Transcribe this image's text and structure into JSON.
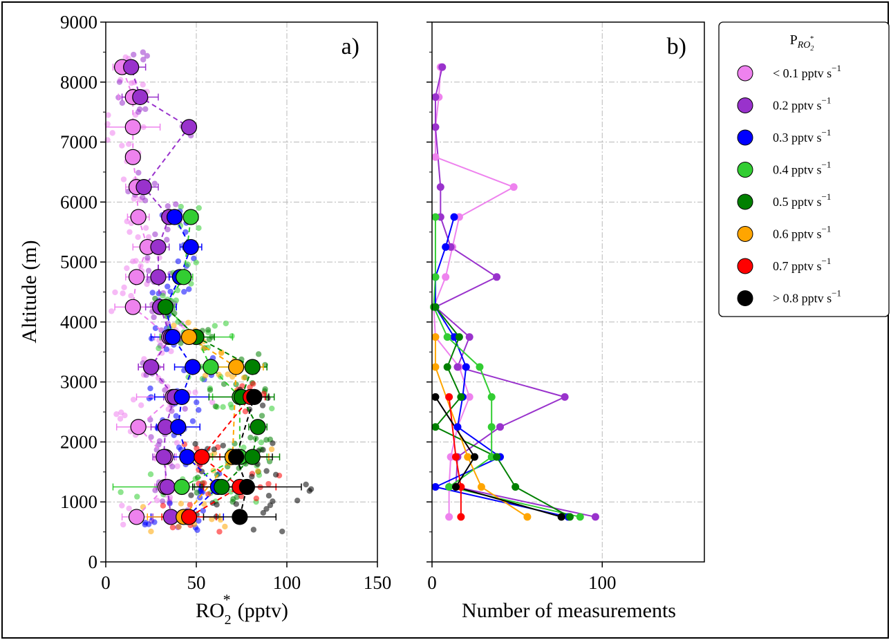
{
  "chart_data": [
    {
      "panel": "a)",
      "type": "scatter",
      "xlabel_main": "RO",
      "xlabel_sup": "*",
      "xlabel_sub": "2",
      "xlabel_unit": "(pptv)",
      "ylabel": "Altitude (m)",
      "xlim": [
        0,
        150
      ],
      "ylim": [
        0,
        9000
      ],
      "xticks": [
        "0",
        "50",
        "100",
        "150"
      ],
      "yticks": [
        "0",
        "1000",
        "2000",
        "3000",
        "4000",
        "5000",
        "6000",
        "7000",
        "8000",
        "9000"
      ],
      "grid": "dash-dot",
      "series": [
        {
          "name": "< 0.1 pptv s⁻¹",
          "color": "#ee82ee",
          "alt": [
            750,
            1250,
            1750,
            2250,
            2750,
            3250,
            3750,
            4250,
            4750,
            5250,
            5750,
            6250,
            6750,
            7250,
            7750,
            8250
          ],
          "x": [
            17,
            33,
            33,
            18,
            37,
            25,
            35,
            15,
            17,
            23,
            18,
            17,
            15,
            15,
            15,
            9
          ],
          "err": [
            8,
            6,
            6,
            12,
            20,
            7,
            8,
            10,
            6,
            8,
            6,
            6,
            4,
            15,
            8,
            5
          ]
        },
        {
          "name": "0.2 pptv s⁻¹",
          "color": "#9932cc",
          "alt": [
            750,
            1250,
            1750,
            2250,
            2750,
            3250,
            3750,
            4250,
            4750,
            5250,
            5750,
            6250,
            7250,
            7750,
            8250
          ],
          "x": [
            36,
            34,
            32,
            33,
            38,
            25,
            36,
            30,
            29,
            29,
            35,
            21,
            46,
            19,
            14
          ],
          "err": [
            10,
            6,
            6,
            8,
            6,
            7,
            6,
            8,
            6,
            6,
            4,
            8,
            0,
            10,
            8
          ]
        },
        {
          "name": "0.3 pptv s⁻¹",
          "color": "#0000ff",
          "alt": [
            750,
            1250,
            1750,
            2250,
            2750,
            3250,
            3750,
            4250,
            4750,
            5250,
            5750
          ],
          "x": [
            45,
            62,
            45,
            40,
            42,
            48,
            37,
            33,
            41,
            47,
            38
          ],
          "err": [
            20,
            10,
            10,
            12,
            15,
            10,
            12,
            6,
            6,
            6,
            4
          ]
        },
        {
          "name": "0.4 pptv s⁻¹",
          "color": "#32cd32",
          "alt": [
            1250,
            1750,
            2750,
            3250,
            3750,
            4250,
            4750,
            5750
          ],
          "x": [
            42,
            74,
            74,
            58,
            50,
            33,
            43,
            47
          ],
          "err": [
            38,
            15,
            15,
            12,
            20,
            5,
            5,
            4
          ]
        },
        {
          "name": "0.5 pptv s⁻¹",
          "color": "#008000",
          "alt": [
            1250,
            1750,
            2250,
            2750,
            3250,
            3750,
            4250
          ],
          "x": [
            64,
            81,
            84,
            75,
            81,
            50,
            33
          ],
          "err": [
            15,
            15,
            5,
            18,
            8,
            10,
            4
          ]
        },
        {
          "name": "0.6 pptv s⁻¹",
          "color": "#ffa500",
          "alt": [
            750,
            1750,
            3250,
            3750
          ],
          "x": [
            43,
            70,
            72,
            46
          ],
          "err": [
            20,
            20,
            15,
            8
          ]
        },
        {
          "name": "0.7 pptv s⁻¹",
          "color": "#ff0000",
          "alt": [
            750,
            1250,
            1750,
            2750
          ],
          "x": [
            46,
            74,
            53,
            80
          ],
          "err": [
            15,
            20,
            10,
            8
          ]
        },
        {
          "name": "> 0.8 pptv s⁻¹",
          "color": "#000000",
          "alt": [
            750,
            1250,
            1750,
            2750
          ],
          "x": [
            74,
            78,
            72,
            82
          ],
          "err": [
            20,
            30,
            20,
            8
          ]
        }
      ]
    },
    {
      "panel": "b)",
      "type": "line",
      "xlabel": "Number of measurements",
      "xlim": [
        0,
        160
      ],
      "ylim": [
        0,
        9000
      ],
      "xticks": [
        "0",
        "100"
      ],
      "grid": "dash-dot",
      "series": [
        {
          "name": "< 0.1 pptv s⁻¹",
          "color": "#ee82ee",
          "alt": [
            750,
            1250,
            1750,
            2250,
            2750,
            3250,
            3750,
            4250,
            4750,
            5250,
            5750,
            6250,
            6750,
            7250,
            7750,
            8250
          ],
          "n": [
            10,
            10,
            11,
            15,
            22,
            16,
            2,
            1,
            8,
            12,
            16,
            48,
            2,
            2,
            4,
            5
          ]
        },
        {
          "name": "0.2 pptv s⁻¹",
          "color": "#9932cc",
          "alt": [
            750,
            1250,
            1750,
            2250,
            2750,
            3250,
            3750,
            4250,
            4750,
            5250,
            5750,
            6250,
            7250,
            7750,
            8250
          ],
          "n": [
            96,
            14,
            15,
            40,
            78,
            15,
            22,
            2,
            38,
            11,
            5,
            5,
            2,
            2,
            6
          ]
        },
        {
          "name": "0.3 pptv s⁻¹",
          "color": "#0000ff",
          "alt": [
            750,
            1250,
            1750,
            2250,
            2750,
            3250,
            3750,
            4250,
            4750,
            5250,
            5750
          ],
          "n": [
            80,
            2,
            40,
            15,
            18,
            20,
            13,
            2,
            2,
            8,
            13
          ]
        },
        {
          "name": "0.4 pptv s⁻¹",
          "color": "#32cd32",
          "alt": [
            750,
            1250,
            1750,
            2250,
            2750,
            3250,
            3750,
            4250,
            4750,
            5750
          ],
          "n": [
            87,
            10,
            35,
            35,
            35,
            28,
            9,
            1,
            2,
            2
          ]
        },
        {
          "name": "0.5 pptv s⁻¹",
          "color": "#008000",
          "alt": [
            750,
            1250,
            1750,
            2250,
            2750,
            3250,
            3750,
            4250
          ],
          "n": [
            81,
            49,
            38,
            2,
            17,
            9,
            16,
            2
          ]
        },
        {
          "name": "0.6 pptv s⁻¹",
          "color": "#ffa500",
          "alt": [
            750,
            1250,
            1750,
            3250,
            3750
          ],
          "n": [
            56,
            29,
            21,
            2,
            2
          ]
        },
        {
          "name": "0.7 pptv s⁻¹",
          "color": "#ff0000",
          "alt": [
            750,
            1250,
            1750,
            2750
          ],
          "n": [
            17,
            17,
            14,
            10
          ]
        },
        {
          "name": "> 0.8 pptv s⁻¹",
          "color": "#000000",
          "alt": [
            750,
            1250,
            1750,
            2750
          ],
          "n": [
            76,
            14,
            25,
            2
          ]
        }
      ]
    }
  ],
  "legend": {
    "title_main": "P",
    "title_sub": "RO",
    "title_subsub": "2",
    "title_sup": "*",
    "placement": "right",
    "items": [
      {
        "label": "< 0.1 pptv s",
        "exp": "−1",
        "color": "#ee82ee"
      },
      {
        "label": "0.2 pptv s",
        "exp": "−1",
        "color": "#9932cc"
      },
      {
        "label": "0.3 pptv s",
        "exp": "−1",
        "color": "#0000ff"
      },
      {
        "label": "0.4 pptv s",
        "exp": "−1",
        "color": "#32cd32"
      },
      {
        "label": "0.5 pptv s",
        "exp": "−1",
        "color": "#008000"
      },
      {
        "label": "0.6 pptv s",
        "exp": "−1",
        "color": "#ffa500"
      },
      {
        "label": "0.7 pptv s",
        "exp": "−1",
        "color": "#ff0000"
      },
      {
        "label": "> 0.8 pptv s",
        "exp": "−1",
        "color": "#000000"
      }
    ]
  }
}
